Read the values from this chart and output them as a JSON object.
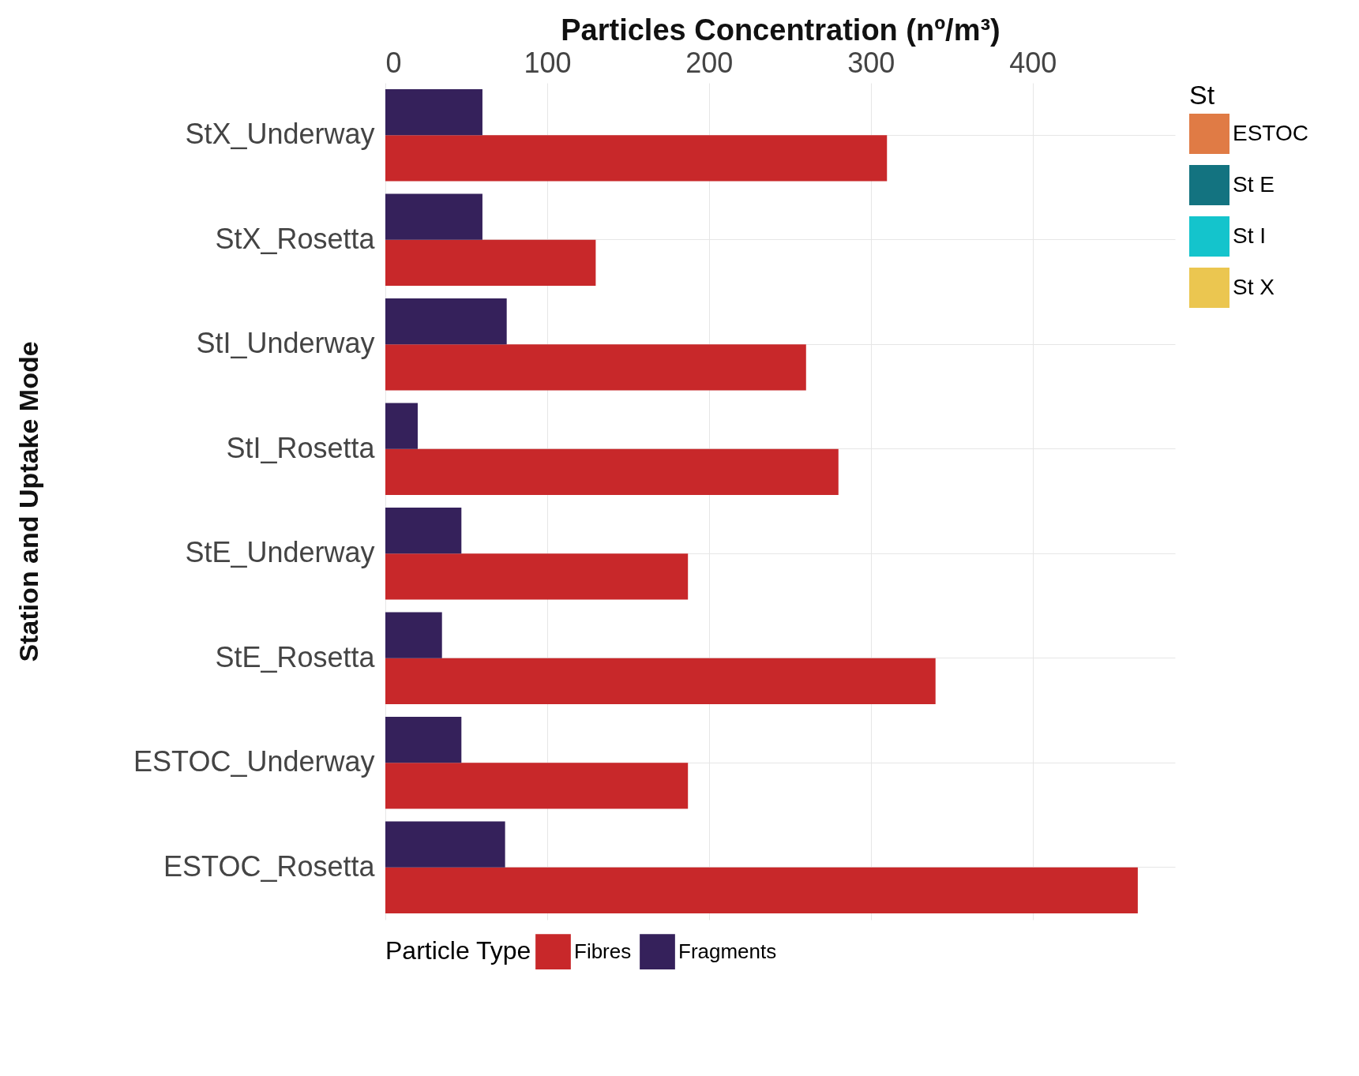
{
  "chart_data": {
    "type": "bar",
    "orientation": "horizontal",
    "xlabel": "Particles Concentration (nº/m³)",
    "ylabel": "Station and Uptake Mode",
    "legend_title": "Particle Type",
    "legend": "bottom",
    "grid": true,
    "categories": [
      "StX_Underway",
      "StX_Rosetta",
      "StI_Underway",
      "StI_Rosetta",
      "StE_Underway",
      "StE_Rosetta",
      "ESTOC_Underway",
      "ESTOC_Rosetta"
    ],
    "series": [
      {
        "name": "Fibres",
        "color": "#c8282a",
        "values": [
          310,
          130,
          260,
          280,
          187,
          340,
          187,
          465
        ]
      },
      {
        "name": "Fragments",
        "color": "#35215b",
        "values": [
          60,
          60,
          75,
          20,
          47,
          35,
          47,
          74
        ]
      },
      {
        "name": "ESTOC",
        "color": "#e07b45",
        "values": [
          null,
          null,
          null,
          null,
          null,
          null,
          null,
          null
        ]
      },
      {
        "name": "St E",
        "color": "#137380",
        "values": [
          null,
          null,
          null,
          null,
          null,
          null,
          null,
          null
        ]
      },
      {
        "name": "St I",
        "color": "#14c4cc",
        "values": [
          null,
          null,
          null,
          null,
          null,
          null,
          null,
          null
        ]
      },
      {
        "name": "St X",
        "color": "#ebc650",
        "values": [
          null,
          null,
          null,
          null,
          null,
          null,
          null,
          null
        ]
      }
    ],
    "annotations": [
      "St"
    ],
    "xlim": [
      0,
      488
    ],
    "xticks": [
      0,
      100,
      200,
      300,
      400
    ]
  }
}
